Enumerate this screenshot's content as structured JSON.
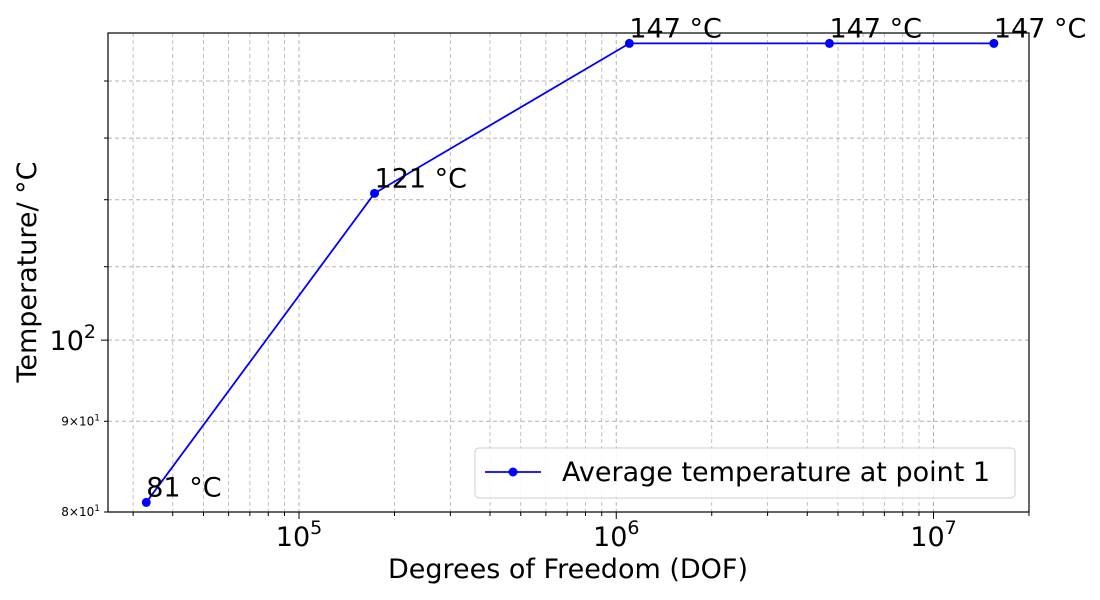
{
  "chart_data": {
    "type": "line",
    "xscale": "log",
    "yscale": "log",
    "xlabel": "Degrees of Freedom (DOF)",
    "ylabel": "Temperature/ °C",
    "xlim": [
      25000,
      20000000
    ],
    "ylim": [
      80,
      149
    ],
    "grid": "both (major and minor, dashed)",
    "legend_position": "lower-right",
    "x_tick_labels": [
      {
        "value": 100000,
        "base": "10",
        "exp": "5"
      },
      {
        "value": 1000000,
        "base": "10",
        "exp": "6"
      },
      {
        "value": 10000000,
        "base": "10",
        "exp": "7"
      }
    ],
    "y_tick_labels": [
      {
        "value": 100,
        "mant": "",
        "base": "10",
        "exp": "2"
      },
      {
        "value": 90,
        "mant": "9×",
        "base": "10",
        "exp": "1"
      },
      {
        "value": 80,
        "mant": "8×",
        "base": "10",
        "exp": "1"
      }
    ],
    "series": [
      {
        "name": "Average temperature at point 1",
        "color": "#0000ff",
        "marker": "circle",
        "x": [
          33000,
          173000,
          1100000,
          4700000,
          15500000
        ],
        "y": [
          81,
          121,
          147,
          147,
          147
        ],
        "labels": [
          "81 °C",
          "121 °C",
          "147 °C",
          "147 °C",
          "147 °C"
        ]
      }
    ]
  }
}
